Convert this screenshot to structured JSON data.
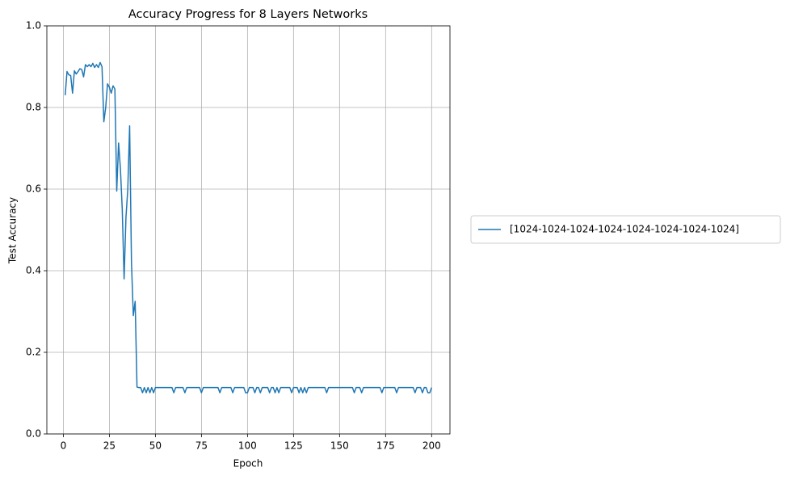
{
  "chart_data": {
    "type": "line",
    "title": "Accuracy Progress for 8 Layers Networks",
    "xlabel": "Epoch",
    "ylabel": "Test Accuracy",
    "x": [
      1,
      2,
      3,
      4,
      5,
      6,
      7,
      8,
      9,
      10,
      11,
      12,
      13,
      14,
      15,
      16,
      17,
      18,
      19,
      20,
      21,
      22,
      23,
      24,
      25,
      26,
      27,
      28,
      29,
      30,
      31,
      32,
      33,
      34,
      35,
      36,
      37,
      38,
      39,
      40,
      41,
      42,
      43,
      44,
      45,
      46,
      47,
      48,
      49,
      50,
      51,
      52,
      53,
      54,
      55,
      56,
      57,
      58,
      59,
      60,
      61,
      62,
      63,
      64,
      65,
      66,
      67,
      68,
      69,
      70,
      71,
      72,
      73,
      74,
      75,
      76,
      77,
      78,
      79,
      80,
      81,
      82,
      83,
      84,
      85,
      86,
      87,
      88,
      89,
      90,
      91,
      92,
      93,
      94,
      95,
      96,
      97,
      98,
      99,
      100,
      101,
      102,
      103,
      104,
      105,
      106,
      107,
      108,
      109,
      110,
      111,
      112,
      113,
      114,
      115,
      116,
      117,
      118,
      119,
      120,
      121,
      122,
      123,
      124,
      125,
      126,
      127,
      128,
      129,
      130,
      131,
      132,
      133,
      134,
      135,
      136,
      137,
      138,
      139,
      140,
      141,
      142,
      143,
      144,
      145,
      146,
      147,
      148,
      149,
      150,
      151,
      152,
      153,
      154,
      155,
      156,
      157,
      158,
      159,
      160,
      161,
      162,
      163,
      164,
      165,
      166,
      167,
      168,
      169,
      170,
      171,
      172,
      173,
      174,
      175,
      176,
      177,
      178,
      179,
      180,
      181,
      182,
      183,
      184,
      185,
      186,
      187,
      188,
      189,
      190,
      191,
      192,
      193,
      194,
      195,
      196,
      197,
      198,
      199,
      200
    ],
    "series": [
      {
        "name": "[1024-1024-1024-1024-1024-1024-1024-1024]",
        "color": "#1f77b4",
        "values": [
          0.83,
          0.888,
          0.88,
          0.878,
          0.835,
          0.89,
          0.882,
          0.888,
          0.895,
          0.893,
          0.875,
          0.905,
          0.9,
          0.905,
          0.9,
          0.908,
          0.898,
          0.905,
          0.898,
          0.91,
          0.9,
          0.765,
          0.8,
          0.858,
          0.85,
          0.835,
          0.853,
          0.845,
          0.595,
          0.713,
          0.65,
          0.55,
          0.38,
          0.53,
          0.6,
          0.755,
          0.42,
          0.29,
          0.325,
          0.115,
          0.1135,
          0.1135,
          0.101,
          0.1135,
          0.101,
          0.1135,
          0.101,
          0.1135,
          0.101,
          0.1135,
          0.1135,
          0.1135,
          0.1135,
          0.1135,
          0.1135,
          0.1135,
          0.1135,
          0.1135,
          0.1135,
          0.101,
          0.1135,
          0.1135,
          0.1135,
          0.1135,
          0.1135,
          0.101,
          0.1135,
          0.1135,
          0.1135,
          0.1135,
          0.1135,
          0.1135,
          0.1135,
          0.1135,
          0.101,
          0.1135,
          0.1135,
          0.1135,
          0.1135,
          0.1135,
          0.1135,
          0.1135,
          0.1135,
          0.1135,
          0.101,
          0.1135,
          0.1135,
          0.1135,
          0.1135,
          0.1135,
          0.1135,
          0.101,
          0.1135,
          0.1135,
          0.1135,
          0.1135,
          0.1135,
          0.1135,
          0.101,
          0.101,
          0.1135,
          0.1135,
          0.1135,
          0.101,
          0.1135,
          0.1135,
          0.101,
          0.1135,
          0.1135,
          0.1135,
          0.1135,
          0.101,
          0.1135,
          0.1135,
          0.101,
          0.1135,
          0.101,
          0.1135,
          0.1135,
          0.1135,
          0.1135,
          0.1135,
          0.1135,
          0.101,
          0.1135,
          0.1135,
          0.1135,
          0.101,
          0.1135,
          0.101,
          0.1135,
          0.101,
          0.1135,
          0.1135,
          0.1135,
          0.1135,
          0.1135,
          0.1135,
          0.1135,
          0.1135,
          0.1135,
          0.1135,
          0.101,
          0.1135,
          0.1135,
          0.1135,
          0.1135,
          0.1135,
          0.1135,
          0.1135,
          0.1135,
          0.1135,
          0.1135,
          0.1135,
          0.1135,
          0.1135,
          0.1135,
          0.101,
          0.1135,
          0.1135,
          0.1135,
          0.101,
          0.1135,
          0.1135,
          0.1135,
          0.1135,
          0.1135,
          0.1135,
          0.1135,
          0.1135,
          0.1135,
          0.1135,
          0.101,
          0.1135,
          0.1135,
          0.1135,
          0.1135,
          0.1135,
          0.1135,
          0.1135,
          0.101,
          0.1135,
          0.1135,
          0.1135,
          0.1135,
          0.1135,
          0.1135,
          0.1135,
          0.1135,
          0.1135,
          0.101,
          0.1135,
          0.1135,
          0.1135,
          0.101,
          0.1135,
          0.1135,
          0.101,
          0.101,
          0.1135
        ]
      }
    ],
    "xlim": [
      -8.95,
      209.95
    ],
    "ylim": [
      0,
      1
    ],
    "xticks": [
      0,
      25,
      50,
      75,
      100,
      125,
      150,
      175,
      200
    ],
    "yticks": [
      {
        "value": 0,
        "label": "0.0"
      },
      0.2,
      0.4,
      0.6,
      0.8,
      {
        "value": 1,
        "label": "1.0"
      }
    ],
    "grid": true,
    "legend": "outside right"
  }
}
